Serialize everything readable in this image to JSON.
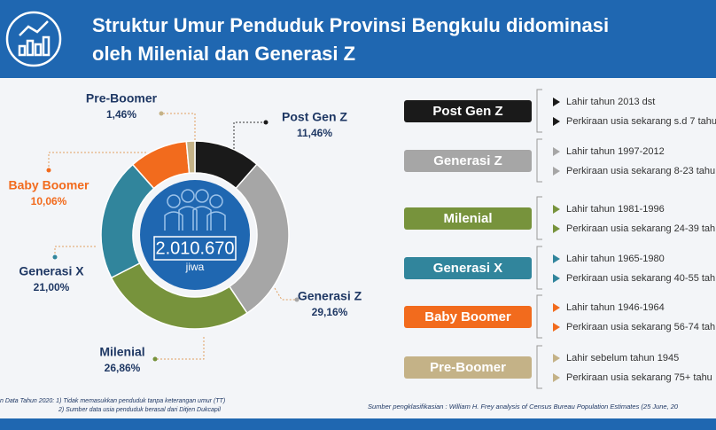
{
  "header": {
    "title_line1": "Struktur Umur Penduduk Provinsi Bengkulu didominasi",
    "title_line2": "oleh Milenial dan Generasi Z"
  },
  "chart_data": {
    "type": "donut",
    "categories": [
      "Post Gen Z",
      "Generasi Z",
      "Milenial",
      "Generasi X",
      "Baby Boomer",
      "Pre-Boomer"
    ],
    "values": [
      11.46,
      29.16,
      26.86,
      21.0,
      10.06,
      1.46
    ],
    "value_labels": [
      "11,46%",
      "29,16%",
      "26,86%",
      "21,00%",
      "10,06%",
      "1,46%"
    ],
    "colors": [
      "#1a1a1a",
      "#a6a6a6",
      "#77933c",
      "#31859c",
      "#f26b1d",
      "#c4b287"
    ],
    "center_value": "2.010.670",
    "center_label": "jiwa"
  },
  "classification": [
    {
      "name": "Post Gen Z",
      "lines": [
        "Lahir tahun 2013 dst",
        "Perkiraan usia sekarang s.d 7 tahu"
      ]
    },
    {
      "name": "Generasi Z",
      "lines": [
        "Lahir tahun 1997-2012",
        "Perkiraan usia sekarang 8-23 tahu"
      ]
    },
    {
      "name": "Milenial",
      "lines": [
        "Lahir tahun 1981-1996",
        "Perkiraan usia sekarang 24-39 tah"
      ]
    },
    {
      "name": "Generasi X",
      "lines": [
        "Lahir tahun 1965-1980",
        "Perkiraan usia sekarang 40-55 tah"
      ]
    },
    {
      "name": "Baby Boomer",
      "lines": [
        "Lahir tahun 1946-1964",
        "Perkiraan usia sekarang 56-74 tah"
      ]
    },
    {
      "name": "Pre-Boomer",
      "lines": [
        "Lahir sebelum tahun 1945",
        "Perkiraan usia sekarang 75+ tahu"
      ]
    }
  ],
  "footnotes": {
    "left1": "n Data Tahun 2020: 1) Tidak memasukkan penduduk tanpa keterangan umur (TT)",
    "left2": "2) Sumber data usia penduduk berasal dari Ditjen Dukcapil",
    "right": "Sumber pengklasifikasian : William H. Frey analysis of Census Bureau Population Estimates (25 June, 20"
  }
}
